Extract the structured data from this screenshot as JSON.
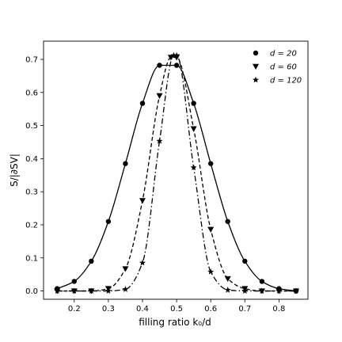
{
  "chart_data": {
    "type": "line",
    "xlabel": "filling ratio k₀/d",
    "ylabel": "S/|∂SV|",
    "xlim": [
      0.11,
      0.885
    ],
    "ylim": [
      -0.025,
      0.755
    ],
    "xticks": [
      "0.2",
      "0.3",
      "0.4",
      "0.5",
      "0.6",
      "0.7",
      "0.8"
    ],
    "yticks": [
      "0.0",
      "0.1",
      "0.2",
      "0.3",
      "0.4",
      "0.5",
      "0.6",
      "0.7"
    ],
    "grid": false,
    "legend_position": "top-right",
    "series": [
      {
        "name": "d = 20",
        "marker": "circle",
        "line_style": "solid",
        "x": [
          0.15,
          0.2,
          0.25,
          0.3,
          0.35,
          0.4,
          0.45,
          0.5,
          0.55,
          0.6,
          0.65,
          0.7,
          0.75,
          0.8,
          0.85
        ],
        "y": [
          0.007,
          0.029,
          0.09,
          0.21,
          0.385,
          0.567,
          0.682,
          0.682,
          0.567,
          0.385,
          0.21,
          0.09,
          0.029,
          0.007,
          0.0
        ]
      },
      {
        "name": "d = 60",
        "marker": "triangle-down",
        "line_style": "dashed",
        "x": [
          0.15,
          0.2,
          0.25,
          0.3,
          0.35,
          0.4,
          0.45,
          0.4833,
          0.5,
          0.55,
          0.6,
          0.65,
          0.7,
          0.75,
          0.8,
          0.85
        ],
        "y": [
          0.0,
          0.0,
          0.0,
          0.007,
          0.067,
          0.273,
          0.59,
          0.706,
          0.706,
          0.49,
          0.186,
          0.037,
          0.007,
          0.0,
          0.0,
          0.0
        ]
      },
      {
        "name": "d = 120",
        "marker": "star",
        "line_style": "dashdot",
        "x": [
          0.15,
          0.2,
          0.25,
          0.3,
          0.35,
          0.4,
          0.45,
          0.4917,
          0.5,
          0.55,
          0.6,
          0.65,
          0.7,
          0.75,
          0.8,
          0.85
        ],
        "y": [
          0.0,
          0.0,
          0.0,
          0.0,
          0.005,
          0.085,
          0.453,
          0.712,
          0.712,
          0.373,
          0.058,
          0.003,
          0.0,
          0.0,
          0.0,
          0.0
        ]
      }
    ]
  }
}
